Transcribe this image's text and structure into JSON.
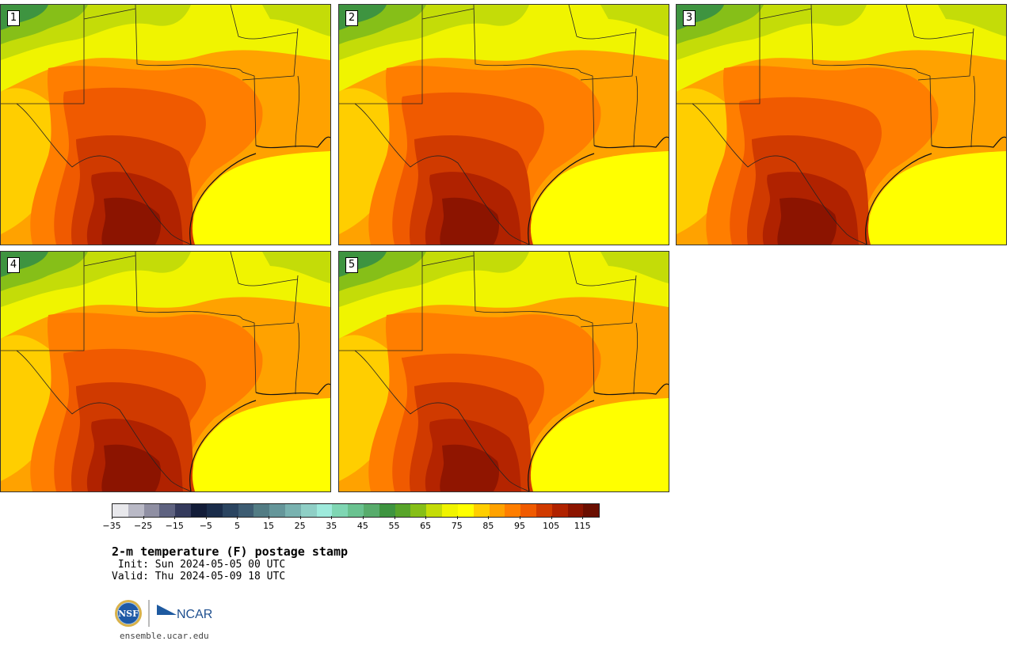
{
  "title": "2-m temperature (F) postage stamp",
  "init_text": " Init: Sun 2024-05-05 00 UTC",
  "valid_text": "Valid: Thu 2024-05-09 18 UTC",
  "site": "ensemble.ucar.edu",
  "logos": {
    "nsf": "NSF",
    "ncar": "NCAR"
  },
  "panels": [
    {
      "label": "1"
    },
    {
      "label": "2"
    },
    {
      "label": "3"
    },
    {
      "label": "4"
    },
    {
      "label": "5"
    }
  ],
  "colorbar": {
    "min": -35,
    "max": 120,
    "step": 5,
    "tick_labels": [
      "−35",
      "−25",
      "−15",
      "−5",
      "5",
      "15",
      "25",
      "35",
      "45",
      "55",
      "65",
      "75",
      "85",
      "95",
      "105",
      "115"
    ],
    "colors": [
      "#e8e8ec",
      "#b9b9c6",
      "#8f8fa3",
      "#5e6280",
      "#343a5c",
      "#121c38",
      "#1a2c4a",
      "#2a4460",
      "#3d5c72",
      "#527c84",
      "#65969a",
      "#79b2b0",
      "#8fcfc6",
      "#9eeadc",
      "#7fd6b3",
      "#6ac290",
      "#58ac6c",
      "#3e9440",
      "#58a42a",
      "#86bf18",
      "#c4dc08",
      "#f0f400",
      "#ffff00",
      "#ffce00",
      "#ffa200",
      "#ff7e00",
      "#f05a00",
      "#d03a00",
      "#b02200",
      "#8c1400",
      "#6a0e00"
    ]
  }
}
